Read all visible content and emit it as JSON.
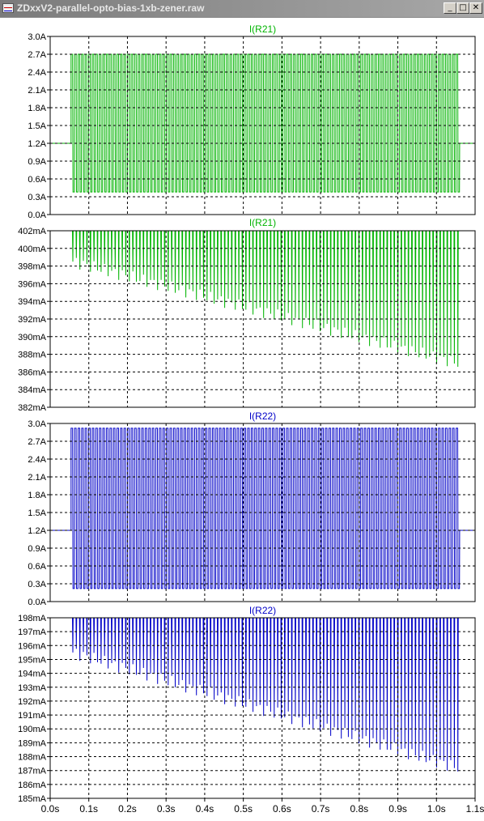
{
  "window": {
    "title": "ZDxxV2-parallel-opto-bias-1xb-zener.raw",
    "controls": {
      "minimize": "_",
      "maximize": "□",
      "close": "✕"
    }
  },
  "colors": {
    "green_trace": "#00b400",
    "blue_trace": "#0000c8",
    "axis_text": "#000000",
    "title_green": "#00b400",
    "title_blue": "#0000c8"
  },
  "chart_data": [
    {
      "type": "line",
      "title": "I(R21)",
      "color": "#00b400",
      "ylim": [
        0.0,
        3.0
      ],
      "yticks": [
        "0.0A",
        "0.3A",
        "0.6A",
        "0.9A",
        "1.2A",
        "1.5A",
        "1.8A",
        "2.1A",
        "2.4A",
        "2.7A",
        "3.0A"
      ],
      "xlim": [
        0.0,
        1.1
      ],
      "grid": true,
      "series": [
        {
          "x_start": 0.054,
          "x_end": 1.06,
          "cycles": 110,
          "high": 2.7,
          "low": 0.38,
          "baseline_before": 1.2,
          "baseline_after": 1.2
        }
      ]
    },
    {
      "type": "line",
      "title": "I(R21)",
      "color": "#00b400",
      "ylim": [
        382,
        402
      ],
      "yticks": [
        "382mA",
        "384mA",
        "386mA",
        "388mA",
        "390mA",
        "392mA",
        "394mA",
        "396mA",
        "398mA",
        "400mA",
        "402mA"
      ],
      "xlim": [
        0.0,
        1.1
      ],
      "grid": true,
      "series": [
        {
          "x_start": 0.054,
          "x_end": 1.06,
          "cycles": 110,
          "dip_start": 398.5,
          "dip_end": 387.0
        }
      ]
    },
    {
      "type": "line",
      "title": "I(R22)",
      "color": "#0000c8",
      "ylim": [
        0.0,
        3.0
      ],
      "yticks": [
        "0.0A",
        "0.3A",
        "0.6A",
        "0.9A",
        "1.2A",
        "1.5A",
        "1.8A",
        "2.1A",
        "2.4A",
        "2.7A",
        "3.0A"
      ],
      "xlim": [
        0.0,
        1.1
      ],
      "grid": true,
      "series": [
        {
          "x_start": 0.054,
          "x_end": 1.06,
          "cycles": 110,
          "high": 2.92,
          "low": 0.22,
          "baseline_before": 1.2,
          "baseline_after": 1.2
        }
      ]
    },
    {
      "type": "line",
      "title": "I(R22)",
      "color": "#0000c8",
      "ylim": [
        185,
        198
      ],
      "yticks": [
        "185mA",
        "186mA",
        "187mA",
        "188mA",
        "189mA",
        "190mA",
        "191mA",
        "192mA",
        "193mA",
        "194mA",
        "195mA",
        "196mA",
        "197mA",
        "198mA"
      ],
      "xlim": [
        0.0,
        1.1
      ],
      "xticks": [
        "0.0s",
        "0.1s",
        "0.2s",
        "0.3s",
        "0.4s",
        "0.5s",
        "0.6s",
        "0.7s",
        "0.8s",
        "0.9s",
        "1.0s",
        "1.1s"
      ],
      "grid": true,
      "series": [
        {
          "x_start": 0.054,
          "x_end": 1.06,
          "cycles": 110,
          "dip_start": 195.5,
          "dip_end": 187.2
        }
      ]
    }
  ]
}
